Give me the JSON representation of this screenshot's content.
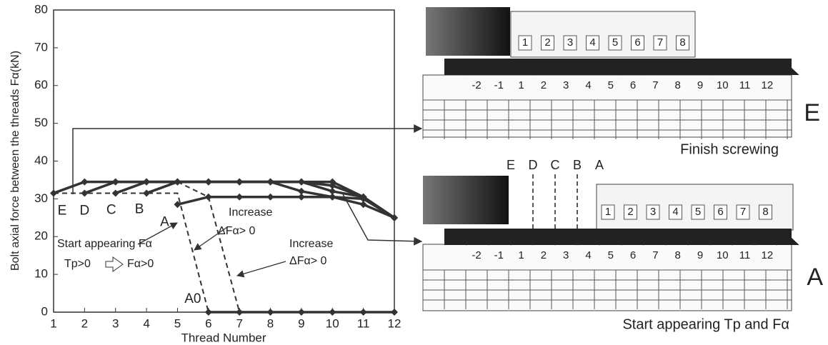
{
  "chart_data": {
    "type": "line",
    "ylabel": "Bolt axial force between the threads Fα(kN)",
    "xlabel": "Thread Number",
    "x": [
      1,
      2,
      3,
      4,
      5,
      6,
      7,
      8,
      9,
      10,
      11,
      12
    ],
    "xlim": [
      1,
      12
    ],
    "xticks": [
      1,
      2,
      3,
      4,
      5,
      6,
      7,
      8,
      9,
      10,
      11,
      12
    ],
    "ylim": [
      0,
      80
    ],
    "yticks": [
      0,
      10,
      20,
      30,
      40,
      50,
      60,
      70,
      80
    ],
    "series": [
      {
        "name": "E",
        "color": "#333333",
        "marker": true,
        "values": [
          31.5,
          34.5,
          34.5,
          34.5,
          34.5,
          34.5,
          34.5,
          34.5,
          34.5,
          34.5,
          30.5,
          25
        ]
      },
      {
        "name": "D",
        "color": "#333333",
        "marker": true,
        "values": [
          null,
          31.5,
          34.5,
          34.5,
          34.5,
          34.5,
          34.5,
          34.5,
          34.5,
          33.5,
          30.5,
          25
        ]
      },
      {
        "name": "C",
        "color": "#333333",
        "marker": true,
        "values": [
          null,
          null,
          31.5,
          34.5,
          34.5,
          34.5,
          34.5,
          34.5,
          34.5,
          32,
          30.5,
          25
        ]
      },
      {
        "name": "B",
        "color": "#333333",
        "marker": true,
        "values": [
          null,
          null,
          null,
          31.5,
          34.5,
          34.5,
          34.5,
          34.5,
          32,
          30.5,
          30,
          25
        ]
      },
      {
        "name": "A",
        "color": "#333333",
        "marker": true,
        "values": [
          null,
          null,
          null,
          null,
          28.5,
          30.5,
          30.5,
          30.5,
          30.5,
          30.5,
          28.5,
          25
        ]
      },
      {
        "name": "A0",
        "color": "#333333",
        "marker": true,
        "values": [
          null,
          null,
          null,
          null,
          null,
          0,
          0,
          0,
          0,
          0,
          0,
          0
        ]
      },
      {
        "color": "#333333",
        "dash": true,
        "x": [
          1,
          5,
          6
        ],
        "values": [
          31.5,
          31.5,
          0
        ]
      },
      {
        "color": "#333333",
        "dash": true,
        "x": [
          5,
          6,
          7
        ],
        "values": [
          34.5,
          30.5,
          0
        ]
      }
    ],
    "annotations": [
      "Start appearing Fα",
      "Tp>0",
      "Fα>0",
      "Increase",
      "ΔFα> 0",
      "Increase",
      "ΔFα> 0"
    ]
  },
  "figures": {
    "top": {
      "label": "E",
      "caption": "Finish screwing",
      "nut_numbers": [
        "1",
        "2",
        "3",
        "4",
        "5",
        "6",
        "7",
        "8"
      ],
      "bolt_numbers": [
        "-2",
        "-1",
        "1",
        "2",
        "3",
        "4",
        "5",
        "6",
        "7",
        "8",
        "9",
        "10",
        "11",
        "12"
      ]
    },
    "bottom": {
      "label": "A",
      "caption": "Start appearing Tp and Fα",
      "markers": [
        "E",
        "D",
        "C",
        "B",
        "A"
      ],
      "nut_numbers": [
        "1",
        "2",
        "3",
        "4",
        "5",
        "6",
        "7",
        "8"
      ],
      "bolt_numbers": [
        "-2",
        "-1",
        "1",
        "2",
        "3",
        "4",
        "5",
        "6",
        "7",
        "8",
        "9",
        "10",
        "11",
        "12"
      ]
    }
  }
}
